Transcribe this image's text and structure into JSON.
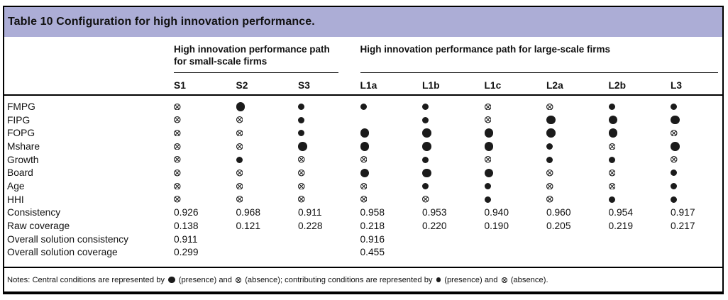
{
  "title": "Table 10 Configuration for high innovation performance.",
  "accent_color": "#acadd6",
  "groups": [
    {
      "label": "High innovation performance path for small-scale firms",
      "columns": [
        "S1",
        "S2",
        "S3"
      ]
    },
    {
      "label": "High innovation performance path for large-scale firms",
      "columns": [
        "L1a",
        "L1b",
        "L1c",
        "L2a",
        "L2b",
        "L3"
      ]
    }
  ],
  "columns": [
    "S1",
    "S2",
    "S3",
    "L1a",
    "L1b",
    "L1c",
    "L2a",
    "L2b",
    "L3"
  ],
  "symbol_key": {
    "P": "central-presence-large-filled-circle",
    "p": "contributing-presence-small-filled-circle",
    "x": "absence-crossed-circle",
    "": "blank"
  },
  "condition_rows": [
    {
      "label": "FMPG",
      "cells": [
        "x",
        "P",
        "p",
        "p",
        "p",
        "x",
        "x",
        "p",
        "p"
      ]
    },
    {
      "label": "FIPG",
      "cells": [
        "x",
        "x",
        "p",
        "",
        "p",
        "x",
        "P",
        "P",
        "P"
      ]
    },
    {
      "label": "FOPG",
      "cells": [
        "x",
        "x",
        "p",
        "P",
        "P",
        "P",
        "P",
        "P",
        "x"
      ]
    },
    {
      "label": "Mshare",
      "cells": [
        "x",
        "x",
        "P",
        "P",
        "P",
        "P",
        "p",
        "x",
        "P"
      ]
    },
    {
      "label": "Growth",
      "cells": [
        "x",
        "p",
        "x",
        "x",
        "p",
        "x",
        "p",
        "p",
        "x"
      ]
    },
    {
      "label": "Board",
      "cells": [
        "x",
        "x",
        "x",
        "P",
        "P",
        "P",
        "x",
        "x",
        "p"
      ]
    },
    {
      "label": "Age",
      "cells": [
        "x",
        "x",
        "x",
        "x",
        "p",
        "p",
        "x",
        "x",
        "p"
      ]
    },
    {
      "label": "HHI",
      "cells": [
        "x",
        "x",
        "x",
        "x",
        "x",
        "p",
        "x",
        "p",
        "p"
      ]
    }
  ],
  "stat_rows": [
    {
      "label": "Consistency",
      "values": [
        "0.926",
        "0.968",
        "0.911",
        "0.958",
        "0.953",
        "0.940",
        "0.960",
        "0.954",
        "0.917"
      ]
    },
    {
      "label": "Raw coverage",
      "values": [
        "0.138",
        "0.121",
        "0.228",
        "0.218",
        "0.220",
        "0.190",
        "0.205",
        "0.219",
        "0.217"
      ]
    },
    {
      "label": "Overall solution consistency",
      "values": [
        "0.911",
        "",
        "",
        "0.916",
        "",
        "",
        "",
        "",
        ""
      ]
    },
    {
      "label": "Overall solution coverage",
      "values": [
        "0.299",
        "",
        "",
        "0.455",
        "",
        "",
        "",
        "",
        ""
      ]
    }
  ],
  "notes": {
    "segments": [
      "Notes: Central conditions are represented by",
      "(presence) and",
      "(absence); contributing conditions are represented by",
      "(presence) and",
      "(absence)."
    ]
  }
}
